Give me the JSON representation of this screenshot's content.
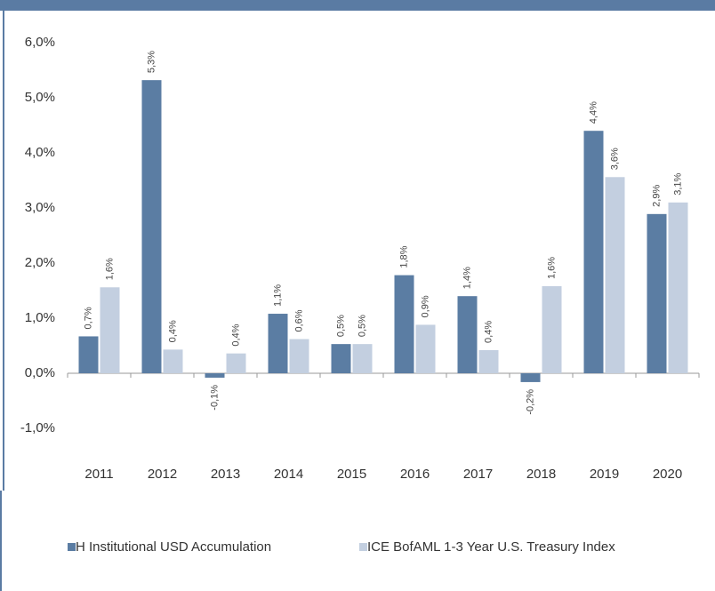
{
  "chart_data": {
    "type": "bar",
    "categories": [
      "2011",
      "2012",
      "2013",
      "2014",
      "2015",
      "2016",
      "2017",
      "2018",
      "2019",
      "2020"
    ],
    "series": [
      {
        "name": "H Institutional USD Accumulation",
        "color": "#5b7da3",
        "values": [
          0.67,
          5.32,
          -0.08,
          1.08,
          0.53,
          1.78,
          1.4,
          -0.16,
          4.4,
          2.89
        ],
        "value_labels": [
          "0,7%",
          "5,3%",
          "-0,1%",
          "1,1%",
          "0,5%",
          "1,8%",
          "1,4%",
          "-0,2%",
          "4,4%",
          "2,9%"
        ]
      },
      {
        "name": "ICE BofAML 1-3 Year U.S. Treasury Index",
        "color": "#c3cfe0",
        "values": [
          1.56,
          0.43,
          0.36,
          0.62,
          0.53,
          0.88,
          0.42,
          1.58,
          3.56,
          3.1
        ],
        "value_labels": [
          "1,6%",
          "0,4%",
          "0,4%",
          "0,6%",
          "0,5%",
          "0,9%",
          "0,4%",
          "1,6%",
          "3,6%",
          "3,1%"
        ]
      }
    ],
    "ylim": [
      -1,
      6
    ],
    "yticks": [
      {
        "value": -1,
        "label": "-1,0%"
      },
      {
        "value": 0,
        "label": "0,0%"
      },
      {
        "value": 1,
        "label": "1,0%"
      },
      {
        "value": 2,
        "label": "2,0%"
      },
      {
        "value": 3,
        "label": "3,0%"
      },
      {
        "value": 4,
        "label": "4,0%"
      },
      {
        "value": 5,
        "label": "5,0%"
      },
      {
        "value": 6,
        "label": "6,0%"
      }
    ],
    "legend": "bottom"
  }
}
